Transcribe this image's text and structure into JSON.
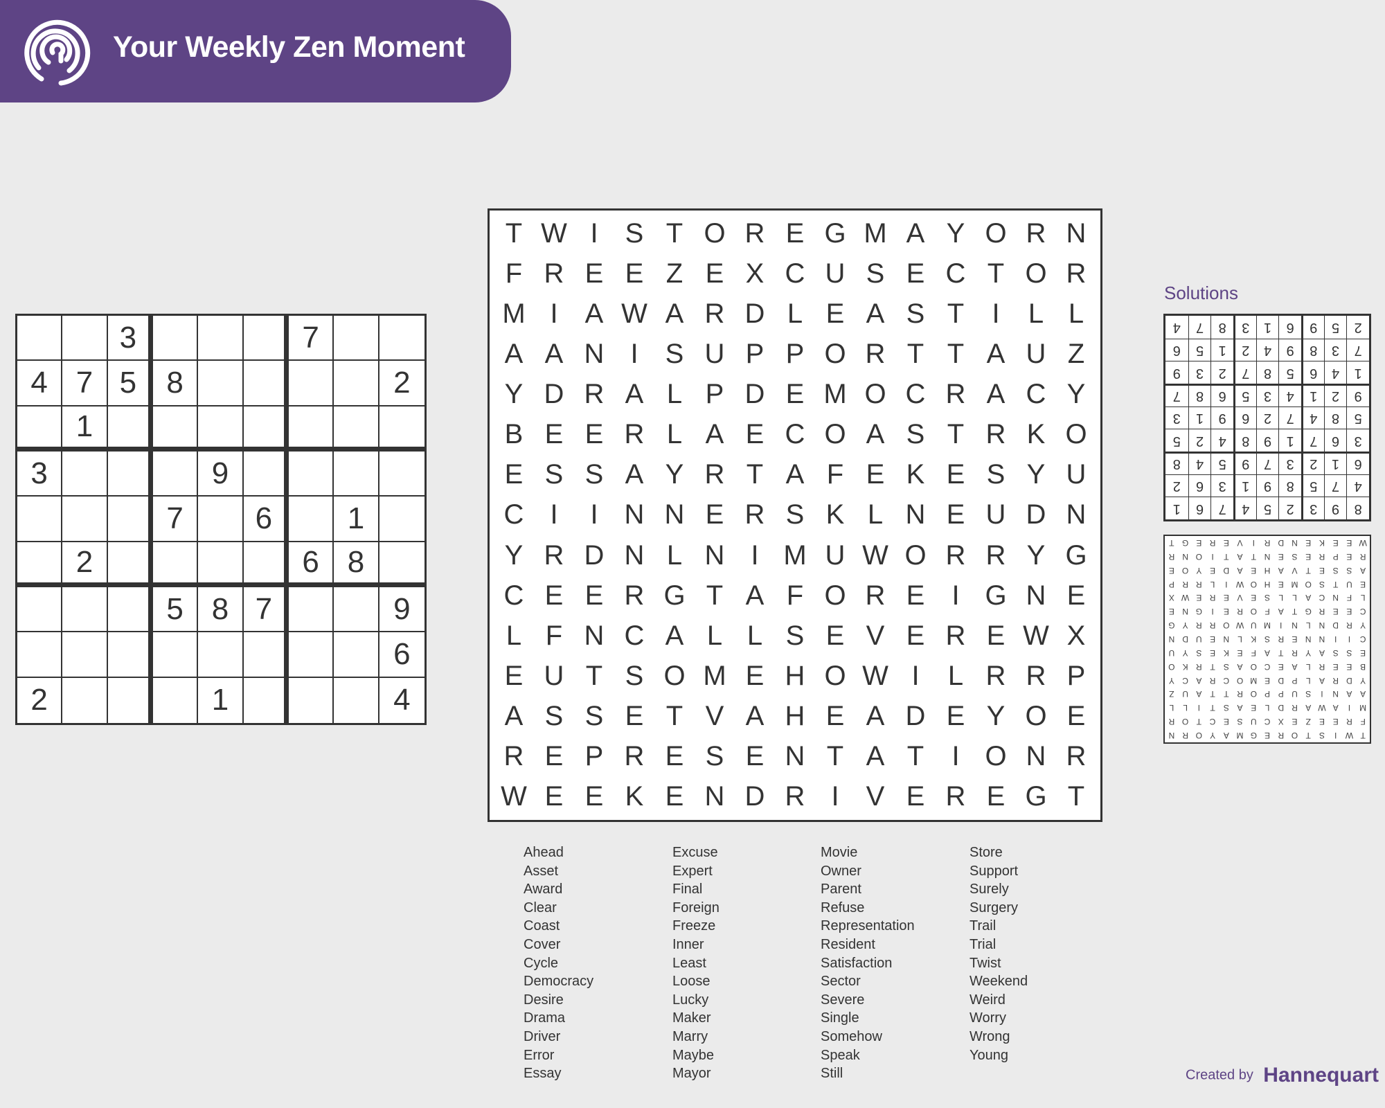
{
  "header": {
    "title": "Your Weekly Zen Moment",
    "brand_color": "#5e4485",
    "logo_icon": "concentric-arcs-logo"
  },
  "sudoku": {
    "grid": [
      [
        "",
        "",
        "3",
        "",
        "",
        "",
        "7",
        "",
        ""
      ],
      [
        "4",
        "7",
        "5",
        "8",
        "",
        "",
        "",
        "",
        "2"
      ],
      [
        "",
        "1",
        "",
        "",
        "",
        "",
        "",
        "",
        ""
      ],
      [
        "3",
        "",
        "",
        "",
        "9",
        "",
        "",
        "",
        ""
      ],
      [
        "",
        "",
        "",
        "7",
        "",
        "6",
        "",
        "1",
        ""
      ],
      [
        "",
        "2",
        "",
        "",
        "",
        "",
        "6",
        "8",
        ""
      ],
      [
        "",
        "",
        "",
        "5",
        "8",
        "7",
        "",
        "",
        "9"
      ],
      [
        "",
        "",
        "",
        "",
        "",
        "",
        "",
        "",
        "6"
      ],
      [
        "2",
        "",
        "",
        "",
        "1",
        "",
        "",
        "",
        "4"
      ]
    ]
  },
  "word_search": {
    "rows": [
      "TWISTOREGMAYORN",
      "FREEZEXCUSECTOR",
      "MIAWARDLEASTILL",
      "AANISUPPORTTAUZ",
      "YDRALPDEMOCRACY",
      "BEERLAECOASTRKO",
      "ESSAYRTAFEKESYU",
      "CIINNERSKLNEUDN",
      "YRDNLNIMUWORRYG",
      "CEERGTAFOREIGNE",
      "LFNCALLSEVEREWX",
      "EUTSOMEHOWILRRP",
      "ASSETVAHEADEYOE",
      "REPRESENTATIONR",
      "WEEKENDRIVEREGT"
    ],
    "word_columns": [
      [
        "Ahead",
        "Asset",
        "Award",
        "Clear",
        "Coast",
        "Cover",
        "Cycle",
        "Democracy",
        "Desire",
        "Drama",
        "Driver",
        "Error",
        "Essay"
      ],
      [
        "Excuse",
        "Expert",
        "Final",
        "Foreign",
        "Freeze",
        "Inner",
        "Least",
        "Loose",
        "Lucky",
        "Maker",
        "Marry",
        "Maybe",
        "Mayor"
      ],
      [
        "Movie",
        "Owner",
        "Parent",
        "Refuse",
        "Representation",
        "Resident",
        "Satisfaction",
        "Sector",
        "Severe",
        "Single",
        "Somehow",
        "Speak",
        "Still"
      ],
      [
        "Store",
        "Support",
        "Surely",
        "Surgery",
        "Trail",
        "Trial",
        "Twist",
        "Weekend",
        "Weird",
        "Worry",
        "Wrong",
        "Young"
      ]
    ]
  },
  "solutions": {
    "title": "Solutions",
    "orientation": "upside-down",
    "sudoku_solution": [
      [
        "8",
        "9",
        "3",
        "2",
        "5",
        "4",
        "7",
        "6",
        "1"
      ],
      [
        "4",
        "7",
        "5",
        "8",
        "9",
        "1",
        "3",
        "6",
        "2"
      ],
      [
        "6",
        "1",
        "2",
        "3",
        "7",
        "9",
        "5",
        "4",
        "8"
      ],
      [
        "3",
        "6",
        "7",
        "1",
        "9",
        "8",
        "4",
        "2",
        "5"
      ],
      [
        "5",
        "8",
        "4",
        "7",
        "2",
        "6",
        "9",
        "1",
        "3"
      ],
      [
        "9",
        "2",
        "1",
        "4",
        "3",
        "5",
        "6",
        "8",
        "7"
      ],
      [
        "1",
        "4",
        "6",
        "5",
        "8",
        "7",
        "2",
        "3",
        "9"
      ],
      [
        "7",
        "3",
        "8",
        "9",
        "4",
        "2",
        "1",
        "5",
        "6"
      ],
      [
        "2",
        "5",
        "9",
        "6",
        "1",
        "3",
        "8",
        "7",
        "4"
      ]
    ]
  },
  "footer": {
    "created_by": "Created by",
    "brand": "Hannequart"
  }
}
